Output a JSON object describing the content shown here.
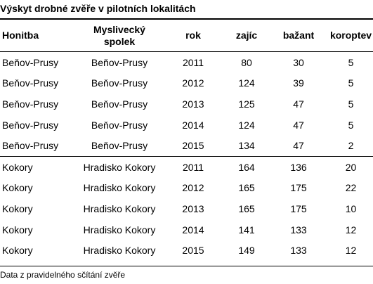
{
  "title": "Výskyt drobné zvěře v pilotních lokalitách",
  "columns": [
    "Honitba",
    "Myslivecký spolek",
    "rok",
    "zajíc",
    "bažant",
    "koroptev"
  ],
  "rows": [
    [
      "Beňov-Prusy",
      "Beňov-Prusy",
      "2011",
      "80",
      "30",
      "5"
    ],
    [
      "Beňov-Prusy",
      "Beňov-Prusy",
      "2012",
      "124",
      "39",
      "5"
    ],
    [
      "Beňov-Prusy",
      "Beňov-Prusy",
      "2013",
      "125",
      "47",
      "5"
    ],
    [
      "Beňov-Prusy",
      "Beňov-Prusy",
      "2014",
      "124",
      "47",
      "5"
    ],
    [
      "Beňov-Prusy",
      "Beňov-Prusy",
      "2015",
      "134",
      "47",
      "2"
    ],
    [
      "Kokory",
      "Hradisko Kokory",
      "2011",
      "164",
      "136",
      "20"
    ],
    [
      "Kokory",
      "Hradisko Kokory",
      "2012",
      "165",
      "175",
      "22"
    ],
    [
      "Kokory",
      "Hradisko Kokory",
      "2013",
      "165",
      "175",
      "10"
    ],
    [
      "Kokory",
      "Hradisko Kokory",
      "2014",
      "141",
      "133",
      "12"
    ],
    [
      "Kokory",
      "Hradisko Kokory",
      "2015",
      "149",
      "133",
      "12"
    ]
  ],
  "footer": "Data z pravidelného sčítání zvěře"
}
